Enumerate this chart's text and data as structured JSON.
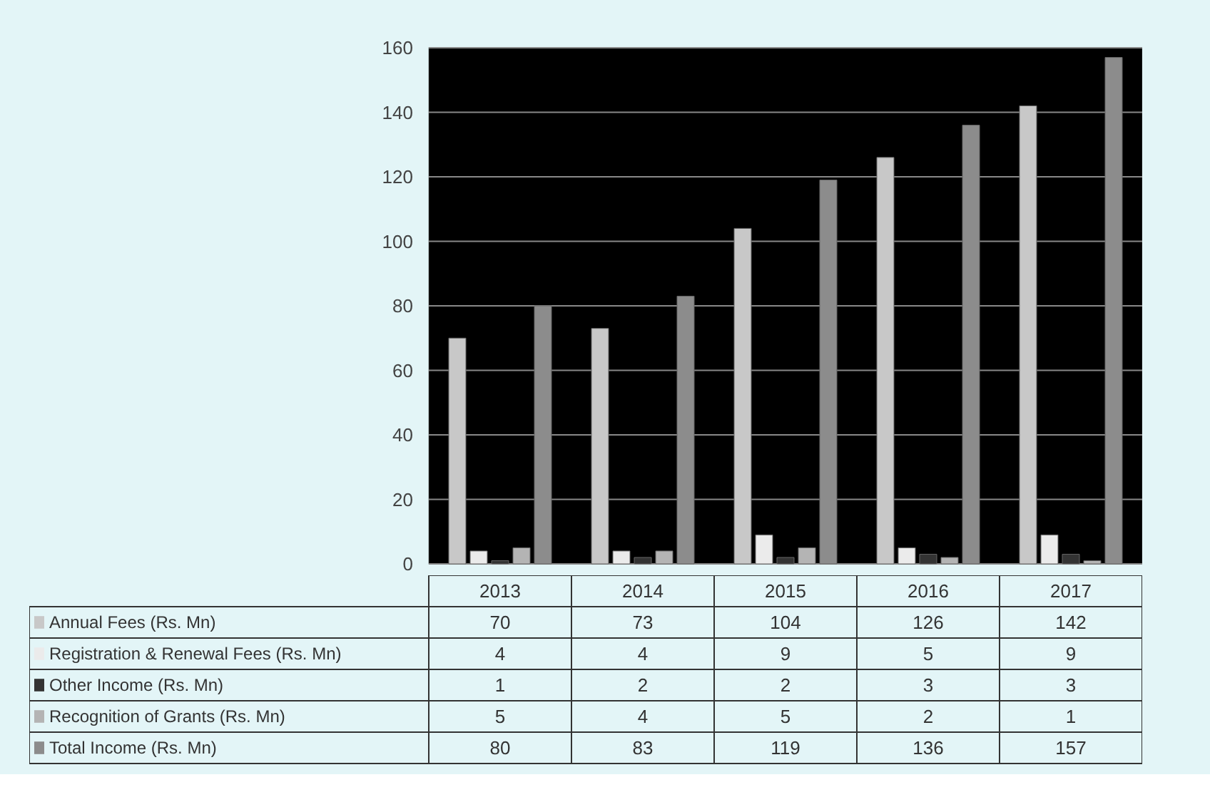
{
  "chart_data": {
    "type": "bar",
    "categories": [
      "2013",
      "2014",
      "2015",
      "2016",
      "2017"
    ],
    "series": [
      {
        "name": "Annual Fees (Rs. Mn)",
        "color": "#c8c8c8",
        "values": [
          70,
          73,
          104,
          126,
          142
        ]
      },
      {
        "name": "Registration & Renewal Fees (Rs. Mn)",
        "color": "#ebebeb",
        "values": [
          4,
          4,
          9,
          5,
          9
        ]
      },
      {
        "name": "Other Income (Rs. Mn)",
        "color": "#333333",
        "values": [
          1,
          2,
          2,
          3,
          3
        ]
      },
      {
        "name": "Recognition of Grants (Rs. Mn)",
        "color": "#b4b4b4",
        "values": [
          5,
          4,
          5,
          2,
          1
        ]
      },
      {
        "name": "Total Income (Rs. Mn)",
        "color": "#8c8c8c",
        "values": [
          80,
          83,
          119,
          136,
          157
        ]
      }
    ],
    "ylim": [
      0,
      160
    ],
    "yticks": [
      0,
      20,
      40,
      60,
      80,
      100,
      120,
      140,
      160
    ],
    "grid": "y",
    "legend": "bottom",
    "data_labels": true
  }
}
